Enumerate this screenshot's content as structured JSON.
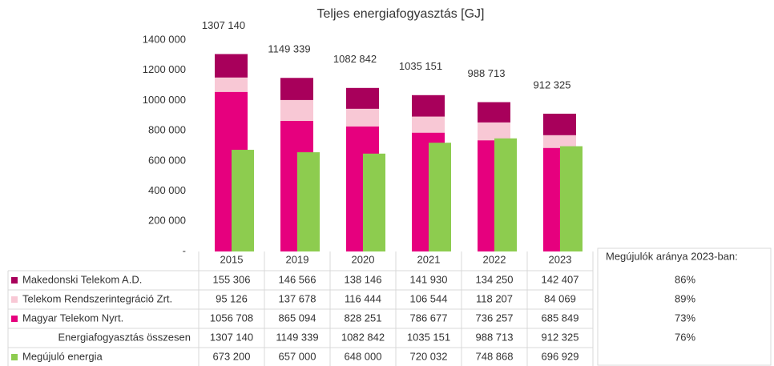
{
  "chart_data": {
    "type": "bar",
    "title": "Teljes energiafogyasztás [GJ]",
    "categories": [
      "2015",
      "2019",
      "2020",
      "2021",
      "2022",
      "2023"
    ],
    "ylim": [
      0,
      1400000
    ],
    "yticks": [
      {
        "value": 0,
        "label": "-"
      },
      {
        "value": 200000,
        "label": "200 000"
      },
      {
        "value": 400000,
        "label": "400 000"
      },
      {
        "value": 600000,
        "label": "600 000"
      },
      {
        "value": 800000,
        "label": "800 000"
      },
      {
        "value": 1000000,
        "label": "1000 000"
      },
      {
        "value": 1200000,
        "label": "1200 000"
      },
      {
        "value": 1400000,
        "label": "1400 000"
      }
    ],
    "grid": false,
    "series": [
      {
        "name": "Makedonski Telekom A.D.",
        "color": "#a8005b",
        "stacked": true,
        "values": [
          155306,
          146566,
          138146,
          141930,
          134250,
          142407
        ],
        "value_labels": [
          "155 306",
          "146 566",
          "138 146",
          "141 930",
          "134 250",
          "142 407"
        ]
      },
      {
        "name": "Telekom Rendszerintegráció Zrt.",
        "color": "#f8c8d5",
        "stacked": true,
        "values": [
          95126,
          137678,
          116444,
          106544,
          118207,
          84069
        ],
        "value_labels": [
          "95 126",
          "137 678",
          "116 444",
          "106 544",
          "118 207",
          "84 069"
        ]
      },
      {
        "name": "Magyar Telekom Nyrt.",
        "color": "#e6007e",
        "stacked": true,
        "values": [
          1056708,
          865094,
          828251,
          786677,
          736257,
          685849
        ],
        "value_labels": [
          "1056 708",
          "865 094",
          "828 251",
          "786 677",
          "736 257",
          "685 849"
        ]
      },
      {
        "name": "Energiafogyasztás összesen",
        "values": [
          1307140,
          1149339,
          1082842,
          1035151,
          988713,
          912325
        ],
        "value_labels": [
          "1307 140",
          "1149 339",
          "1082 842",
          "1035 151",
          "988 713",
          "912 325"
        ]
      },
      {
        "name": "Megújuló energia",
        "color": "#8dcc4f",
        "stacked": false,
        "values": [
          673200,
          657000,
          648000,
          720032,
          748868,
          696929
        ],
        "value_labels": [
          "673 200",
          "657 000",
          "648 000",
          "720 032",
          "748 868",
          "696 929"
        ]
      }
    ]
  },
  "side_table": {
    "title": "Megújulók aránya 2023-ban:",
    "rows": [
      "86%",
      "89%",
      "73%",
      "76%"
    ]
  }
}
